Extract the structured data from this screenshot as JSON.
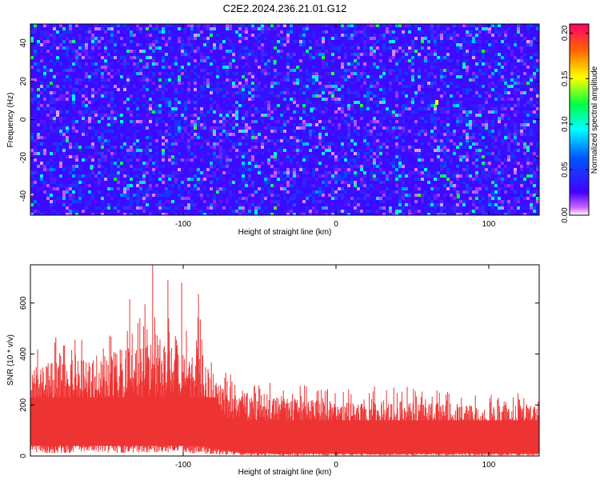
{
  "title": "C2E2.2024.236.21.01.G12",
  "chart_data": [
    {
      "type": "heatmap",
      "xlabel": "Height of straight line (km)",
      "ylabel": "Frequency (Hz)",
      "xlim": [
        -200,
        133
      ],
      "ylim": [
        -50,
        50
      ],
      "xticks": [
        -100,
        0,
        100
      ],
      "yticks": [
        -40,
        -20,
        0,
        20,
        40
      ],
      "colorbar": {
        "label": "Normalized spectral amplitude",
        "range": [
          0,
          0.21
        ],
        "ticks": [
          "0.00",
          "0.05",
          "0.10",
          "0.15",
          "0.20"
        ]
      },
      "typical_value": 0.03,
      "peak_value": 0.15
    },
    {
      "type": "area",
      "xlabel": "Height of straight line (km)",
      "ylabel": "SNR (10 * v/v)",
      "xlim": [
        -200,
        133
      ],
      "ylim": [
        0,
        750
      ],
      "xticks": [
        -100,
        0,
        100
      ],
      "yticks": [
        0,
        200,
        400,
        600
      ],
      "color": "#ee3333",
      "x": [
        -200,
        -180,
        -160,
        -140,
        -120,
        -100,
        -90,
        -80,
        -70,
        -60,
        -40,
        -20,
        0,
        20,
        40,
        60,
        80,
        100,
        120,
        133
      ],
      "envelope": [
        450,
        480,
        470,
        520,
        560,
        540,
        560,
        380,
        330,
        300,
        290,
        280,
        270,
        270,
        280,
        260,
        260,
        250,
        250,
        250
      ],
      "upper_band": [
        330,
        360,
        360,
        400,
        420,
        400,
        380,
        300,
        260,
        240,
        230,
        210,
        200,
        200,
        205,
        200,
        195,
        190,
        190,
        190
      ],
      "lower_band": [
        40,
        35,
        40,
        40,
        45,
        40,
        30,
        20,
        15,
        10,
        8,
        8,
        8,
        8,
        8,
        8,
        8,
        8,
        8,
        8
      ],
      "spikes": [
        {
          "x": -120,
          "y": 750
        },
        {
          "x": -110,
          "y": 690
        },
        {
          "x": -101,
          "y": 680
        },
        {
          "x": -90,
          "y": 635
        },
        {
          "x": -135,
          "y": 615
        },
        {
          "x": -125,
          "y": 595
        }
      ]
    }
  ]
}
